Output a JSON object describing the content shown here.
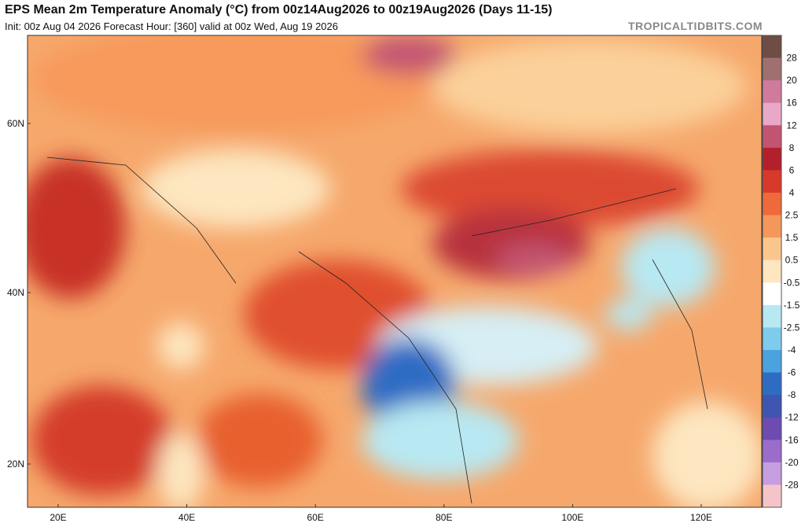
{
  "header": {
    "title": "EPS Mean 2m Temperature Anomaly (°C) from 00z14Aug2026 to 00z19Aug2026 (Days 11-15)",
    "subtitle": "Init: 00z Aug 04 2026   Forecast Hour: [360]   valid at 00z Wed, Aug 19 2026",
    "site": "TROPICALTIDBITS.COM"
  },
  "map": {
    "lat_labels": [
      "60N",
      "40N",
      "20N"
    ],
    "lon_labels": [
      "20E",
      "40E",
      "60E",
      "80E",
      "100E",
      "120E"
    ]
  },
  "colorbar": {
    "labels": [
      "28",
      "20",
      "16",
      "12",
      "8",
      "6",
      "4",
      "2.5",
      "1.5",
      "0.5",
      "-0.5",
      "-1.5",
      "-2.5",
      "-4",
      "-6",
      "-8",
      "-12",
      "-16",
      "-20",
      "-28"
    ],
    "colors": [
      "#6e4d44",
      "#a07070",
      "#d07a9e",
      "#e9a8c8",
      "#c25472",
      "#b3202c",
      "#d73a2a",
      "#ee6a3a",
      "#f5975a",
      "#fbc68e",
      "#fde6c0",
      "#ffffff",
      "#b8e8f2",
      "#7fcbec",
      "#4aa3df",
      "#2e6cc4",
      "#3f55b2",
      "#6d4bb0",
      "#9b6cc9",
      "#c69de0",
      "#f4c4c8"
    ]
  }
}
